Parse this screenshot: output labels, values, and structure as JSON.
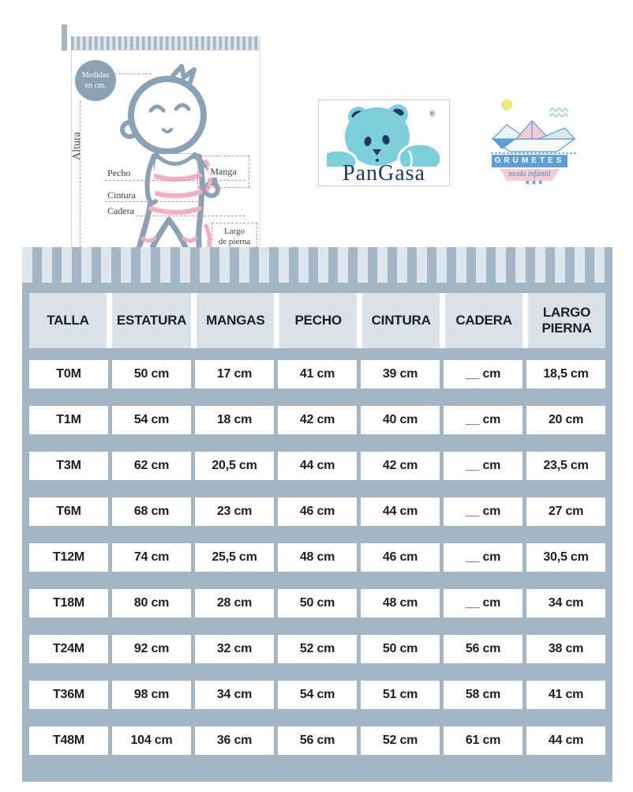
{
  "card": {
    "badge_line1": "Medidas",
    "badge_line2": "en cm.",
    "altura": "Altura",
    "pecho": "Pecho",
    "cintura": "Cintura",
    "cadera": "Cadera",
    "manga": "Manga",
    "largo_line1": "Largo",
    "largo_line2": "de pierna"
  },
  "pangasa": {
    "brand": "PanGasa",
    "registered": "®"
  },
  "grumetes": {
    "brand": "GRUMETES",
    "tagline": "moda infantil",
    "marks": "×××"
  },
  "table": {
    "headers": [
      "TALLA",
      "ESTATURA",
      "MANGAS",
      "PECHO",
      "CINTURA",
      "CADERA",
      "LARGO PIERNA"
    ],
    "rows": [
      [
        "T0M",
        "50 cm",
        "17 cm",
        "41 cm",
        "39 cm",
        "__ cm",
        "18,5 cm"
      ],
      [
        "T1M",
        "54 cm",
        "18 cm",
        "42 cm",
        "40 cm",
        "__ cm",
        "20 cm"
      ],
      [
        "T3M",
        "62 cm",
        "20,5 cm",
        "44 cm",
        "42 cm",
        "__ cm",
        "23,5 cm"
      ],
      [
        "T6M",
        "68 cm",
        "23 cm",
        "46 cm",
        "44 cm",
        "__ cm",
        "27 cm"
      ],
      [
        "T12M",
        "74 cm",
        "25,5 cm",
        "48 cm",
        "46 cm",
        "__ cm",
        "30,5 cm"
      ],
      [
        "T18M",
        "80 cm",
        "28 cm",
        "50 cm",
        "48 cm",
        "__ cm",
        "34 cm"
      ],
      [
        "T24M",
        "92 cm",
        "32 cm",
        "52 cm",
        "50 cm",
        "56 cm",
        "38 cm"
      ],
      [
        "T36M",
        "98 cm",
        "34 cm",
        "54 cm",
        "51 cm",
        "58 cm",
        "41 cm"
      ],
      [
        "T48M",
        "104 cm",
        "36 cm",
        "56 cm",
        "52 cm",
        "61 cm",
        "44 cm"
      ]
    ]
  },
  "colors": {
    "panel_bg": "#a4b6c3",
    "header_cell": "#d9e2e8",
    "stripe_light": "#dde6ec",
    "pink_dash": "#ee87a2",
    "pink_fill": "#f2afc1",
    "baby_blue": "#8ba1b4",
    "pangasa_teal": "#7ccfdb",
    "pangasa_navy": "#1d3866",
    "grumetes_blue": "#5f9ed9",
    "grumetes_pink": "#f4cdd4",
    "sun_yellow": "#ece77f",
    "mint": "#b3dbca"
  }
}
